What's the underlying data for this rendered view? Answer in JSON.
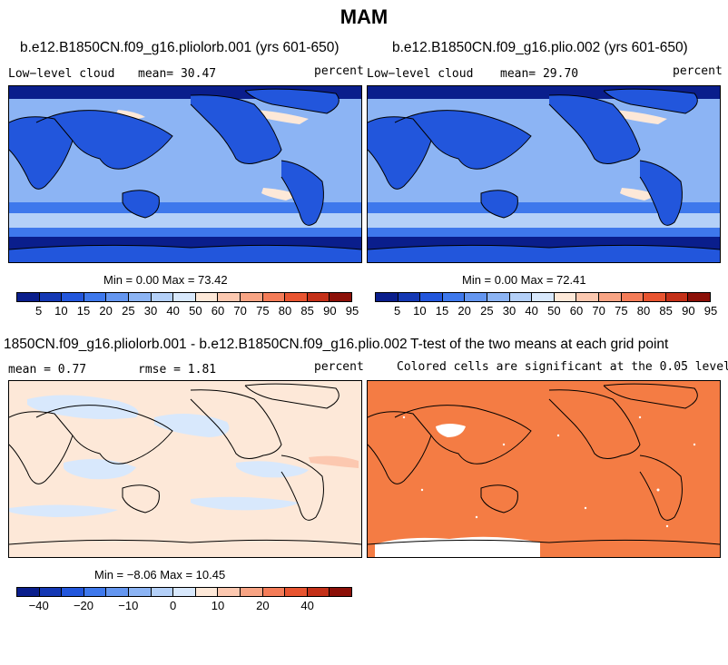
{
  "title": "MAM",
  "panels": [
    {
      "title": "b.e12.B1850CN.f09_g16.pliolorb.001 (yrs 601-650)",
      "left": "Low−level cloud",
      "center": "mean=  30.47",
      "right": "percent",
      "minmax": "Min =   0.00 Max =  73.42"
    },
    {
      "title": "b.e12.B1850CN.f09_g16.plio.002 (yrs 601-650)",
      "left": "Low−level cloud",
      "center": "mean=  29.70",
      "right": "percent",
      "minmax": "Min =   0.00 Max =  72.41"
    },
    {
      "title": "1850CN.f09_g16.pliolorb.001 - b.e12.B1850CN.f09_g16.plio.002",
      "left": "mean =   0.77",
      "center": "rmse =   1.81",
      "right": "percent",
      "minmax": "Min =  −8.06 Max =  10.45"
    },
    {
      "title": "T-test of the two means at each grid point",
      "subtitle": "Colored cells are significant at the 0.05 level"
    }
  ],
  "colorbar_abs": {
    "labels": [
      "5",
      "10",
      "15",
      "20",
      "25",
      "30",
      "40",
      "50",
      "60",
      "70",
      "75",
      "80",
      "85",
      "90",
      "95"
    ],
    "colors": [
      "#0a1e8c",
      "#1438b4",
      "#2256dc",
      "#3e78ec",
      "#6496f0",
      "#8cb4f4",
      "#b4d0f8",
      "#d8e8fc",
      "#fde8d8",
      "#fcc8b0",
      "#f8a484",
      "#f47c58",
      "#e85430",
      "#c43018",
      "#8c1008"
    ]
  },
  "colorbar_diff": {
    "labels": [
      "−40",
      "−20",
      "−10",
      "0",
      "10",
      "20",
      "40"
    ],
    "label_positions": [
      1,
      3,
      5,
      7,
      9,
      11,
      13
    ],
    "colors": [
      "#0a1e8c",
      "#1438b4",
      "#2256dc",
      "#3e78ec",
      "#6496f0",
      "#8cb4f4",
      "#b4d0f8",
      "#d8e8fc",
      "#fde8d8",
      "#fcc8b0",
      "#f8a484",
      "#f47c58",
      "#e85430",
      "#c43018",
      "#8c1008"
    ]
  },
  "map_colors": {
    "ocean_abs": "#8cb4f4",
    "land_abs": "#2256dc",
    "diff_bg": "#fde8d8",
    "diff_blue": "#d8e8fc",
    "ttest": "#f47c44",
    "ttest_gap": "#ffffff"
  }
}
